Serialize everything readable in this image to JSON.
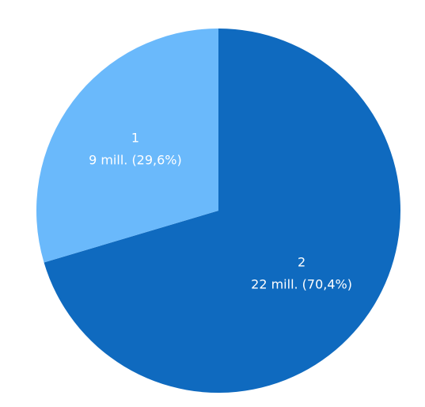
{
  "chart_data": {
    "type": "pie",
    "title": "",
    "slices": [
      {
        "category": "2",
        "value_text": "22 mill. (70,4%)",
        "value": 22,
        "percent": 70.4,
        "color": "#0f6abf"
      },
      {
        "category": "1",
        "value_text": "9 mill. (29,6%)",
        "value": 9,
        "percent": 29.6,
        "color": "#6ab9fb"
      }
    ],
    "start_angle_deg": 0,
    "direction": "clockwise",
    "legend": "none"
  }
}
